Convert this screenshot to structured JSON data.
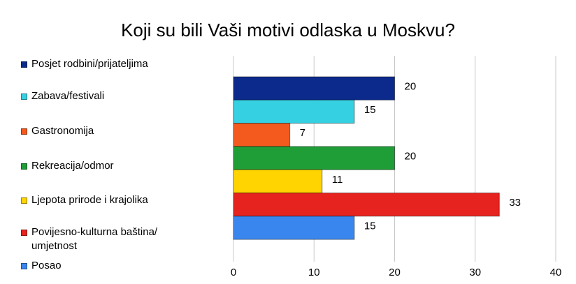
{
  "chart_data": {
    "type": "bar",
    "orientation": "horizontal",
    "title": "Koji su bili Vaši motivi odlaska u Moskvu?",
    "series": [
      {
        "name": "Posjet rodbini/prijateljima",
        "color": "#0b2a8c",
        "values": [
          20
        ]
      },
      {
        "name": "Zabava/festivali",
        "color": "#35d0e2",
        "values": [
          15
        ]
      },
      {
        "name": "Gastronomija",
        "color": "#f45a1e",
        "values": [
          7
        ]
      },
      {
        "name": "Rekreacija/odmor",
        "color": "#1f9e38",
        "values": [
          20
        ]
      },
      {
        "name": "Ljepota prirode i krajolika",
        "color": "#ffd400",
        "values": [
          11
        ]
      },
      {
        "name": "Povijesno-kulturna baština/ umjetnost",
        "color": "#e6231e",
        "values": [
          33
        ]
      },
      {
        "name": "Posao",
        "color": "#3a86ef",
        "values": [
          15
        ]
      }
    ],
    "xlim": [
      0,
      40
    ],
    "xticks": [
      0,
      10,
      20,
      30,
      40
    ],
    "grid": true,
    "legend": "left"
  }
}
